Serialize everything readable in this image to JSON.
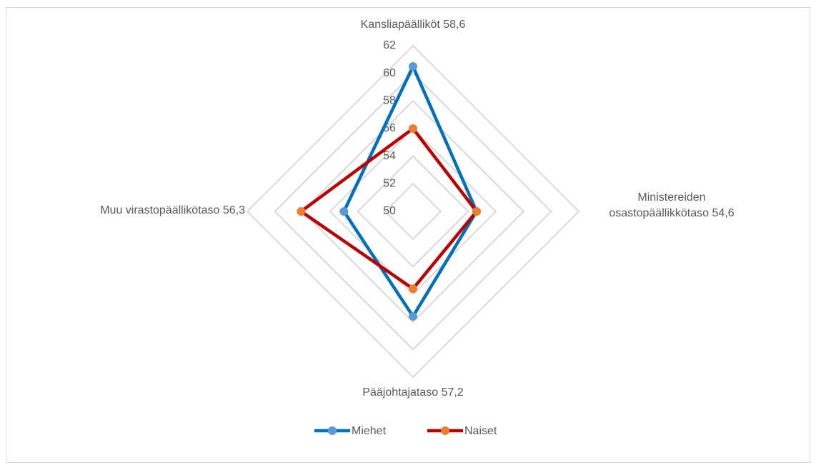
{
  "chart_data": {
    "type": "radar",
    "categories": [
      "Kansliapäälliköt  58,6",
      "Ministereiden\nosastopäällikkötaso 54,6",
      "Pääjohtajataso 57,2",
      "Muu virastopäällikötaso 56,3"
    ],
    "series": [
      {
        "name": "Miehet",
        "color": "#0070c0",
        "marker_color": "#5b9bd5",
        "values": [
          60.5,
          54.6,
          57.6,
          55.0
        ]
      },
      {
        "name": "Naiset",
        "color": "#c00000",
        "marker_color": "#ed7d31",
        "values": [
          56.0,
          54.6,
          55.6,
          58.1
        ]
      }
    ],
    "rlim": [
      50,
      62
    ],
    "rticks": [
      50,
      52,
      54,
      56,
      58,
      60,
      62
    ],
    "grid": true,
    "legend": "bottom"
  }
}
